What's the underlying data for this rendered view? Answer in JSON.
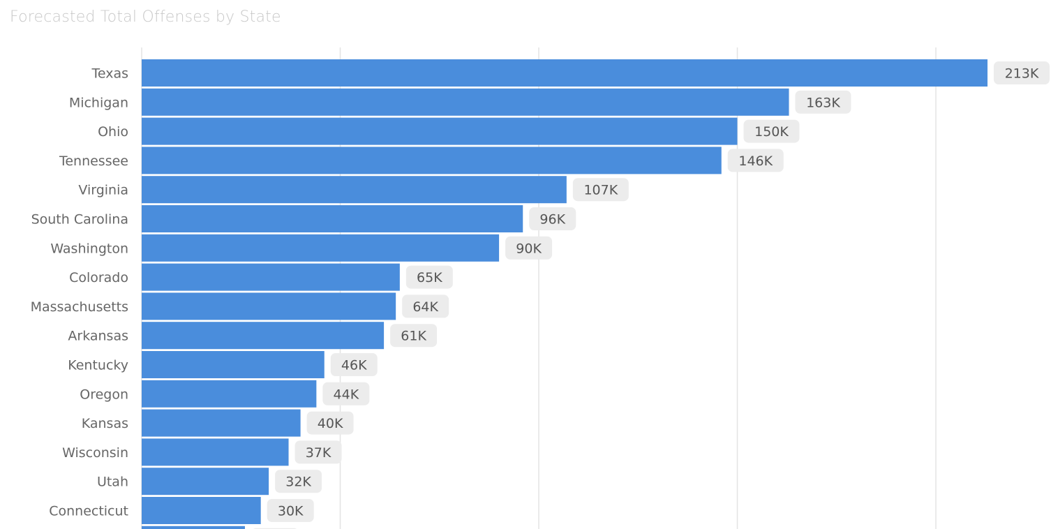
{
  "chart_data": {
    "type": "bar",
    "orientation": "horizontal",
    "title": "Forecasted Total Offenses by State",
    "categories": [
      "Texas",
      "Michigan",
      "Ohio",
      "Tennessee",
      "Virginia",
      "South Carolina",
      "Washington",
      "Colorado",
      "Massachusetts",
      "Arkansas",
      "Kentucky",
      "Oregon",
      "Kansas",
      "Wisconsin",
      "Utah",
      "Connecticut",
      ""
    ],
    "values": [
      213,
      163,
      150,
      146,
      107,
      96,
      90,
      65,
      64,
      61,
      46,
      44,
      40,
      37,
      32,
      30,
      26
    ],
    "data_labels": [
      "213K",
      "163K",
      "150K",
      "146K",
      "107K",
      "96K",
      "90K",
      "65K",
      "64K",
      "61K",
      "46K",
      "44K",
      "40K",
      "37K",
      "32K",
      "30K",
      ""
    ],
    "value_unit": "K",
    "xlim": [
      0,
      225
    ],
    "gridlines": [
      0,
      50,
      100,
      150,
      200
    ],
    "grid": true,
    "x_tick_labels_visible": false,
    "bar_color": "#4a8ddc",
    "label_bg_color": "#ececec",
    "truncated": "list continues below visible area"
  }
}
